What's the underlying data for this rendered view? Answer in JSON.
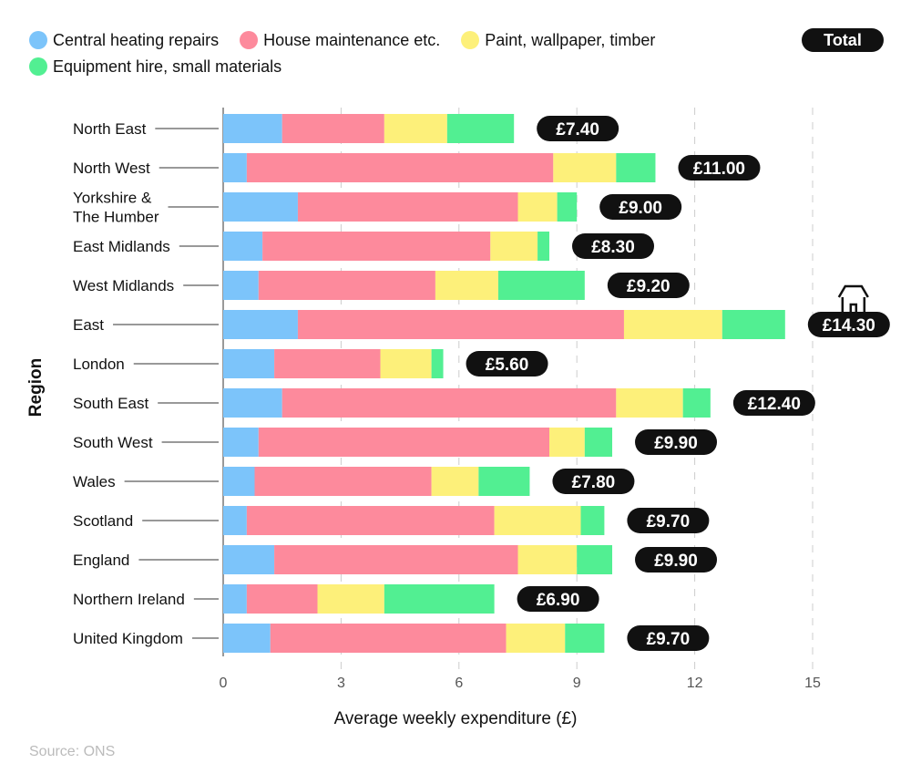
{
  "chart_data": {
    "type": "bar",
    "orientation": "horizontal",
    "stacked": true,
    "xlabel": "Average weekly expenditure (£)",
    "ylabel": "Region",
    "xlim": [
      0,
      15
    ],
    "xticks": [
      0,
      3,
      6,
      9,
      12,
      15
    ],
    "grid": "vertical dashed",
    "legend_placement": "top-left",
    "total_label": "Total",
    "source": "Source: ONS",
    "categories": [
      "North East",
      "North West",
      "Yorkshire & The Humber",
      "East Midlands",
      "West Midlands",
      "East",
      "London",
      "South East",
      "South West",
      "Wales",
      "Scotland",
      "England",
      "Northern Ireland",
      "United Kingdom"
    ],
    "series": [
      {
        "name": "Central heating repairs",
        "color": "#7cc4fa",
        "values": [
          1.5,
          0.6,
          1.9,
          1.0,
          0.9,
          1.9,
          1.3,
          1.5,
          0.9,
          0.8,
          0.6,
          1.3,
          0.6,
          1.2
        ]
      },
      {
        "name": "House maintenance etc.",
        "color": "#fd8a9c",
        "values": [
          2.6,
          7.8,
          5.6,
          5.8,
          4.5,
          8.3,
          2.7,
          8.5,
          7.4,
          4.5,
          6.3,
          6.2,
          1.8,
          6.0
        ]
      },
      {
        "name": "Paint, wallpaper, timber",
        "color": "#fdf07a",
        "values": [
          1.6,
          1.6,
          1.0,
          1.2,
          1.6,
          2.5,
          1.3,
          1.7,
          0.9,
          1.2,
          2.2,
          1.5,
          1.7,
          1.5
        ]
      },
      {
        "name": "Equipment hire, small materials",
        "color": "#52ef92",
        "values": [
          1.7,
          1.0,
          0.5,
          0.3,
          2.2,
          1.6,
          0.3,
          0.7,
          0.7,
          1.3,
          0.6,
          0.9,
          2.8,
          1.0
        ]
      }
    ],
    "totals": [
      "£7.40",
      "£11.00",
      "£9.00",
      "£8.30",
      "£9.20",
      "£14.30",
      "£5.60",
      "£12.40",
      "£9.90",
      "£7.80",
      "£9.70",
      "£9.90",
      "£6.90",
      "£9.70"
    ],
    "highlight_icon": "house-icon"
  }
}
